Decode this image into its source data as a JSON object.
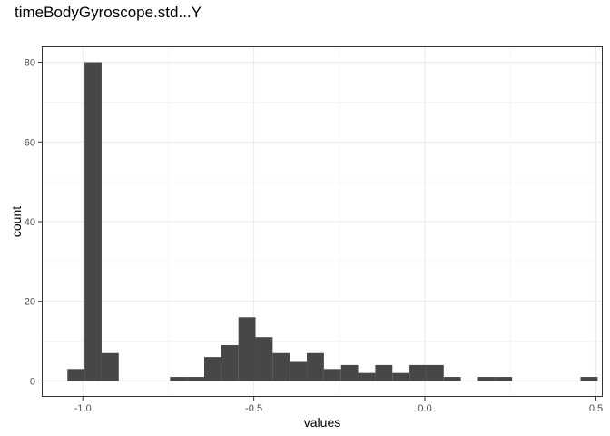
{
  "chart_data": {
    "type": "bar",
    "title": "timeBodyGyroscope.std...Y",
    "xlabel": "values",
    "ylabel": "count",
    "xlim": [
      -1.12,
      0.52
    ],
    "ylim": [
      -4,
      84
    ],
    "x_ticks": [
      -1.0,
      -0.5,
      0.0,
      0.5
    ],
    "x_tick_labels": [
      "-1.0",
      "-0.5",
      "0.0",
      "0.5"
    ],
    "y_ticks": [
      0,
      20,
      40,
      60,
      80
    ],
    "y_tick_labels": [
      "0",
      "20",
      "40",
      "60",
      "80"
    ],
    "grid": true,
    "bar_color": "#474747",
    "bins": [
      {
        "x0": -1.045,
        "x1": -0.995,
        "count": 3
      },
      {
        "x0": -0.995,
        "x1": -0.945,
        "count": 80
      },
      {
        "x0": -0.945,
        "x1": -0.895,
        "count": 7
      },
      {
        "x0": -0.745,
        "x1": -0.695,
        "count": 1
      },
      {
        "x0": -0.695,
        "x1": -0.645,
        "count": 1
      },
      {
        "x0": -0.645,
        "x1": -0.595,
        "count": 6
      },
      {
        "x0": -0.595,
        "x1": -0.545,
        "count": 9
      },
      {
        "x0": -0.545,
        "x1": -0.495,
        "count": 16
      },
      {
        "x0": -0.495,
        "x1": -0.445,
        "count": 11
      },
      {
        "x0": -0.445,
        "x1": -0.395,
        "count": 7
      },
      {
        "x0": -0.395,
        "x1": -0.345,
        "count": 5
      },
      {
        "x0": -0.345,
        "x1": -0.295,
        "count": 7
      },
      {
        "x0": -0.295,
        "x1": -0.245,
        "count": 3
      },
      {
        "x0": -0.245,
        "x1": -0.195,
        "count": 4
      },
      {
        "x0": -0.195,
        "x1": -0.145,
        "count": 2
      },
      {
        "x0": -0.145,
        "x1": -0.095,
        "count": 4
      },
      {
        "x0": -0.095,
        "x1": -0.045,
        "count": 2
      },
      {
        "x0": -0.045,
        "x1": 0.005,
        "count": 4
      },
      {
        "x0": 0.005,
        "x1": 0.055,
        "count": 4
      },
      {
        "x0": 0.055,
        "x1": 0.105,
        "count": 1
      },
      {
        "x0": 0.155,
        "x1": 0.205,
        "count": 1
      },
      {
        "x0": 0.205,
        "x1": 0.255,
        "count": 1
      },
      {
        "x0": 0.455,
        "x1": 0.505,
        "count": 1
      }
    ]
  }
}
